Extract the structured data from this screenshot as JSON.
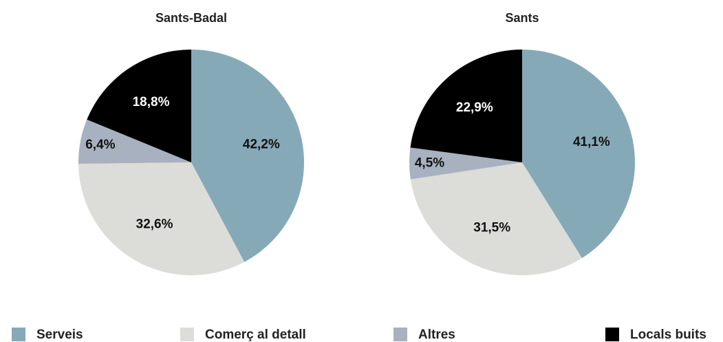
{
  "chart_data": [
    {
      "type": "pie",
      "title": "Sants-Badal",
      "categories": [
        "Serveis",
        "Comerç al detall",
        "Altres",
        "Locals buits"
      ],
      "values": [
        42.2,
        32.6,
        6.4,
        18.8
      ],
      "value_labels": [
        "42,2%",
        "32,6%",
        "6,4%",
        "18,8%"
      ],
      "colors": [
        "#86a9b8",
        "#dcdcd8",
        "#a7b1bf",
        "#000000"
      ]
    },
    {
      "type": "pie",
      "title": "Sants",
      "categories": [
        "Serveis",
        "Comerç al detall",
        "Altres",
        "Locals buits"
      ],
      "values": [
        41.1,
        31.5,
        4.5,
        22.9
      ],
      "value_labels": [
        "41,1%",
        "31,5%",
        "4,5%",
        "22,9%"
      ],
      "colors": [
        "#86a9b8",
        "#dcdcd8",
        "#a7b1bf",
        "#000000"
      ]
    }
  ]
}
